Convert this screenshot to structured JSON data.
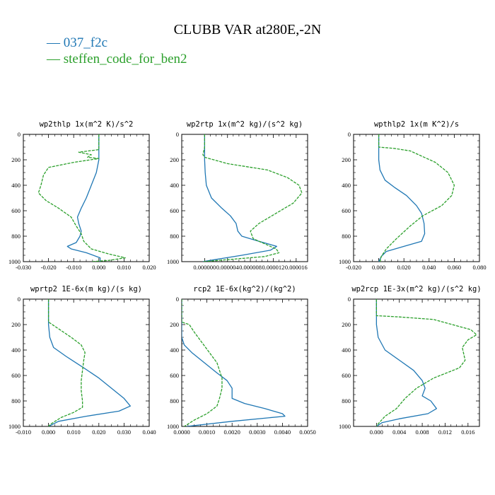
{
  "figure": {
    "title": "CLUBB VAR at280E,-2N",
    "legend": [
      {
        "label": "— 037_f2c",
        "color": "#1f77b4"
      },
      {
        "label": "— steffen_code_for_ben2",
        "color": "#2ca02c"
      }
    ]
  },
  "colors": {
    "series1": "#1f77b4",
    "series2": "#2ca02c"
  },
  "chart_data": [
    {
      "type": "line",
      "title": "wp2thlp    1x(m^2 K)/s^2",
      "xlim": [
        -0.03,
        0.02
      ],
      "ylim": [
        0,
        1000
      ],
      "y_inverted": true,
      "xticks": [
        -0.03,
        -0.02,
        -0.01,
        0.0,
        0.01,
        0.02
      ],
      "xtick_labels": [
        "-0.030",
        "-0.020",
        "-0.010",
        "0.000",
        "0.010",
        "0.020"
      ],
      "yticks": [
        0,
        200,
        400,
        600,
        800,
        1000
      ],
      "ytick_labels": [
        "0",
        "200",
        "400",
        "600",
        "800",
        "1000"
      ],
      "series": [
        {
          "name": "037_f2c",
          "style": "solid",
          "points": [
            [
              0,
              0
            ],
            [
              0,
              100
            ],
            [
              0,
              200
            ],
            [
              -0.001,
              300
            ],
            [
              -0.003,
              400
            ],
            [
              -0.005,
              500
            ],
            [
              -0.007,
              580
            ],
            [
              -0.0085,
              650
            ],
            [
              -0.008,
              700
            ],
            [
              -0.007,
              760
            ],
            [
              -0.0075,
              800
            ],
            [
              -0.009,
              850
            ],
            [
              -0.0125,
              880
            ],
            [
              -0.011,
              900
            ],
            [
              -0.005,
              930
            ],
            [
              0.0005,
              970
            ],
            [
              0.0005,
              1000
            ]
          ]
        },
        {
          "name": "steffen_code_for_ben2",
          "style": "dashed",
          "points": [
            [
              0,
              0
            ],
            [
              0,
              120
            ],
            [
              -0.008,
              140
            ],
            [
              -0.003,
              160
            ],
            [
              -0.0045,
              180
            ],
            [
              0,
              190
            ],
            [
              -0.01,
              220
            ],
            [
              -0.02,
              260
            ],
            [
              -0.022,
              320
            ],
            [
              -0.023,
              400
            ],
            [
              -0.024,
              460
            ],
            [
              -0.021,
              520
            ],
            [
              -0.016,
              580
            ],
            [
              -0.011,
              650
            ],
            [
              -0.009,
              720
            ],
            [
              -0.007,
              780
            ],
            [
              -0.006,
              840
            ],
            [
              -0.003,
              900
            ],
            [
              0.004,
              940
            ],
            [
              0.0105,
              970
            ],
            [
              0.004,
              990
            ],
            [
              -0.003,
              1000
            ]
          ]
        }
      ]
    },
    {
      "type": "line",
      "title": "wp2rtp    1x(m^2 kg)/(s^2 kg)",
      "xlim": [
        -4e-06,
        1.8e-05
      ],
      "ylim": [
        0,
        1000
      ],
      "y_inverted": true,
      "xticks": [
        0.0,
        4e-06,
        8e-06,
        1.2e-05,
        1.6e-05
      ],
      "xtick_labels": [
        "0.000000",
        "0.000004",
        "0.000008",
        "0.000012",
        "0.000016"
      ],
      "yticks": [
        0,
        200,
        400,
        600,
        800,
        1000
      ],
      "ytick_labels": [
        "0",
        "200",
        "400",
        "600",
        "800",
        "1000"
      ],
      "series": [
        {
          "name": "037_f2c",
          "style": "solid",
          "points": [
            [
              0.0,
              0
            ],
            [
              0.0,
              100
            ],
            [
              0.0,
              200
            ],
            [
              1e-07,
              300
            ],
            [
              3e-07,
              400
            ],
            [
              1.2e-06,
              500
            ],
            [
              3e-06,
              580
            ],
            [
              4.5e-06,
              640
            ],
            [
              5.5e-06,
              700
            ],
            [
              5.8e-06,
              760
            ],
            [
              6.5e-06,
              800
            ],
            [
              9.5e-06,
              840
            ],
            [
              1.26e-05,
              880
            ],
            [
              1.15e-05,
              910
            ],
            [
              6.5e-06,
              950
            ],
            [
              1e-06,
              990
            ],
            [
              -3e-07,
              1000
            ]
          ]
        },
        {
          "name": "steffen_code_for_ben2",
          "style": "dashed",
          "points": [
            [
              0.0,
              0
            ],
            [
              0.0,
              100
            ],
            [
              -3e-07,
              160
            ],
            [
              0.0,
              180
            ],
            [
              4e-06,
              230
            ],
            [
              1.1e-05,
              280
            ],
            [
              1.45e-05,
              340
            ],
            [
              1.65e-05,
              400
            ],
            [
              1.7e-05,
              460
            ],
            [
              1.55e-05,
              540
            ],
            [
              1.25e-05,
              620
            ],
            [
              9.5e-06,
              700
            ],
            [
              8e-06,
              760
            ],
            [
              8.5e-06,
              820
            ],
            [
              1.05e-05,
              860
            ],
            [
              1.25e-05,
              900
            ],
            [
              1.3e-05,
              930
            ],
            [
              1.05e-05,
              960
            ],
            [
              2.5e-06,
              990
            ],
            [
              -2e-07,
              1000
            ]
          ]
        }
      ]
    },
    {
      "type": "line",
      "title": "wpthlp2   1x(m K^2)/s",
      "xlim": [
        -0.02,
        0.08
      ],
      "ylim": [
        0,
        1000
      ],
      "y_inverted": true,
      "xticks": [
        -0.02,
        0.0,
        0.02,
        0.04,
        0.06,
        0.08
      ],
      "xtick_labels": [
        "-0.020",
        "0.000",
        "0.020",
        "0.040",
        "0.060",
        "0.080"
      ],
      "yticks": [
        0,
        200,
        400,
        600,
        800,
        1000
      ],
      "ytick_labels": [
        "0",
        "200",
        "400",
        "600",
        "800",
        "1000"
      ],
      "series": [
        {
          "name": "037_f2c",
          "style": "solid",
          "points": [
            [
              0.0,
              0
            ],
            [
              0.0,
              100
            ],
            [
              0.0,
              200
            ],
            [
              0.001,
              280
            ],
            [
              0.005,
              360
            ],
            [
              0.013,
              420
            ],
            [
              0.022,
              480
            ],
            [
              0.03,
              560
            ],
            [
              0.034,
              620
            ],
            [
              0.036,
              700
            ],
            [
              0.0365,
              780
            ],
            [
              0.034,
              840
            ],
            [
              0.02,
              880
            ],
            [
              0.006,
              920
            ],
            [
              0.002,
              960
            ],
            [
              0.0,
              1000
            ]
          ]
        },
        {
          "name": "steffen_code_for_ben2",
          "style": "dashed",
          "points": [
            [
              0.0,
              0
            ],
            [
              0.0,
              100
            ],
            [
              0.012,
              110
            ],
            [
              0.025,
              130
            ],
            [
              0.045,
              220
            ],
            [
              0.055,
              300
            ],
            [
              0.06,
              400
            ],
            [
              0.058,
              480
            ],
            [
              0.05,
              560
            ],
            [
              0.035,
              640
            ],
            [
              0.025,
              720
            ],
            [
              0.014,
              820
            ],
            [
              0.006,
              900
            ],
            [
              0.002,
              960
            ],
            [
              0.001,
              1000
            ]
          ]
        }
      ]
    },
    {
      "type": "line",
      "title": "wprtp2   1E-6x(m kg)/(s kg)",
      "xlim": [
        -0.01,
        0.04
      ],
      "ylim": [
        0,
        1000
      ],
      "y_inverted": true,
      "xticks": [
        -0.01,
        0.0,
        0.01,
        0.02,
        0.03,
        0.04
      ],
      "xtick_labels": [
        "-0.010",
        "0.000",
        "0.010",
        "0.020",
        "0.030",
        "0.040"
      ],
      "yticks": [
        0,
        200,
        400,
        600,
        800,
        1000
      ],
      "ytick_labels": [
        "0",
        "200",
        "400",
        "600",
        "800",
        "1000"
      ],
      "series": [
        {
          "name": "037_f2c",
          "style": "solid",
          "points": [
            [
              0.0,
              0
            ],
            [
              0.0,
              100
            ],
            [
              0.0,
              200
            ],
            [
              0.0005,
              300
            ],
            [
              0.002,
              380
            ],
            [
              0.007,
              450
            ],
            [
              0.014,
              540
            ],
            [
              0.02,
              620
            ],
            [
              0.025,
              700
            ],
            [
              0.03,
              780
            ],
            [
              0.0325,
              840
            ],
            [
              0.028,
              880
            ],
            [
              0.015,
              920
            ],
            [
              0.004,
              960
            ],
            [
              0.0,
              1000
            ]
          ]
        },
        {
          "name": "steffen_code_for_ben2",
          "style": "dashed",
          "points": [
            [
              0.0,
              0
            ],
            [
              0.0,
              100
            ],
            [
              0.0,
              180
            ],
            [
              0.003,
              220
            ],
            [
              0.009,
              300
            ],
            [
              0.013,
              360
            ],
            [
              0.0145,
              420
            ],
            [
              0.014,
              480
            ],
            [
              0.0135,
              560
            ],
            [
              0.013,
              640
            ],
            [
              0.013,
              720
            ],
            [
              0.0135,
              800
            ],
            [
              0.0135,
              850
            ],
            [
              0.01,
              890
            ],
            [
              0.005,
              930
            ],
            [
              0.001,
              980
            ],
            [
              0.0,
              1000
            ]
          ]
        }
      ]
    },
    {
      "type": "line",
      "title": "rcp2    1E-6x(kg^2)/(kg^2)",
      "xlim": [
        0.0,
        0.005
      ],
      "ylim": [
        0,
        1000
      ],
      "y_inverted": true,
      "xticks": [
        0.0,
        0.001,
        0.002,
        0.003,
        0.004,
        0.005
      ],
      "xtick_labels": [
        "0.0000",
        "0.0010",
        "0.0020",
        "0.0030",
        "0.0040",
        "0.0050"
      ],
      "yticks": [
        0,
        200,
        400,
        600,
        800,
        1000
      ],
      "ytick_labels": [
        "0",
        "200",
        "400",
        "600",
        "800",
        "1000"
      ],
      "series": [
        {
          "name": "037_f2c",
          "style": "solid",
          "points": [
            [
              0.0,
              0
            ],
            [
              0.0,
              200
            ],
            [
              0.0,
              300
            ],
            [
              0.0001,
              360
            ],
            [
              0.0004,
              420
            ],
            [
              0.0009,
              500
            ],
            [
              0.0014,
              580
            ],
            [
              0.0018,
              640
            ],
            [
              0.002,
              700
            ],
            [
              0.002,
              780
            ],
            [
              0.0025,
              820
            ],
            [
              0.0033,
              860
            ],
            [
              0.004,
              900
            ],
            [
              0.0041,
              920
            ],
            [
              0.002,
              960
            ],
            [
              0.0002,
              1000
            ]
          ]
        },
        {
          "name": "steffen_code_for_ben2",
          "style": "dashed",
          "points": [
            [
              0.0,
              0
            ],
            [
              0.0,
              180
            ],
            [
              0.0003,
              200
            ],
            [
              0.0005,
              260
            ],
            [
              0.0008,
              340
            ],
            [
              0.0011,
              420
            ],
            [
              0.0014,
              500
            ],
            [
              0.0015,
              560
            ],
            [
              0.0016,
              620
            ],
            [
              0.0016,
              700
            ],
            [
              0.0015,
              780
            ],
            [
              0.0014,
              840
            ],
            [
              0.001,
              900
            ],
            [
              0.0005,
              950
            ],
            [
              0.0001,
              1000
            ]
          ]
        }
      ]
    },
    {
      "type": "line",
      "title": "wp2rcp   1E-3x(m^2 kg)/(s^2 kg)",
      "xlim": [
        -0.004,
        0.018
      ],
      "ylim": [
        0,
        1000
      ],
      "y_inverted": true,
      "xticks": [
        0.0,
        0.004,
        0.008,
        0.012,
        0.016
      ],
      "xtick_labels": [
        "0.000",
        "0.004",
        "0.008",
        "0.012",
        "0.016"
      ],
      "yticks": [
        0,
        200,
        400,
        600,
        800,
        1000
      ],
      "ytick_labels": [
        "0",
        "200",
        "400",
        "600",
        "800",
        "1000"
      ],
      "series": [
        {
          "name": "037_f2c",
          "style": "solid",
          "points": [
            [
              0.0,
              0
            ],
            [
              0.0,
              100
            ],
            [
              0.0,
              200
            ],
            [
              0.0003,
              300
            ],
            [
              0.0015,
              400
            ],
            [
              0.004,
              480
            ],
            [
              0.0065,
              560
            ],
            [
              0.008,
              640
            ],
            [
              0.0085,
              700
            ],
            [
              0.008,
              760
            ],
            [
              0.0095,
              800
            ],
            [
              0.0105,
              860
            ],
            [
              0.009,
              900
            ],
            [
              0.004,
              940
            ],
            [
              0.001,
              970
            ],
            [
              0.0,
              1000
            ]
          ]
        },
        {
          "name": "steffen_code_for_ben2",
          "style": "dashed",
          "points": [
            [
              0.0,
              0
            ],
            [
              0.0,
              130
            ],
            [
              0.004,
              140
            ],
            [
              0.01,
              160
            ],
            [
              0.0165,
              240
            ],
            [
              0.0175,
              280
            ],
            [
              0.016,
              320
            ],
            [
              0.015,
              380
            ],
            [
              0.0155,
              480
            ],
            [
              0.0145,
              540
            ],
            [
              0.01,
              620
            ],
            [
              0.007,
              700
            ],
            [
              0.005,
              780
            ],
            [
              0.0035,
              860
            ],
            [
              0.0015,
              920
            ],
            [
              0.0003,
              980
            ],
            [
              0.0,
              1000
            ]
          ]
        }
      ]
    }
  ]
}
